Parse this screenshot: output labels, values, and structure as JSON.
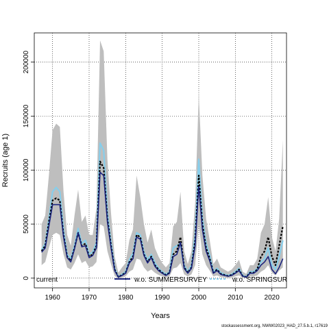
{
  "chart_data": {
    "type": "line",
    "title": "",
    "xlabel": "Years",
    "ylabel": "Recruits (age 1)",
    "xlim": [
      1955,
      2024
    ],
    "ylim": [
      -9000,
      227000
    ],
    "x_ticks": [
      1960,
      1970,
      1980,
      1990,
      2000,
      2010,
      2020
    ],
    "y_ticks": [
      0,
      50000,
      100000,
      150000,
      200000
    ],
    "y_tick_labels": [
      "0",
      "50000",
      "100000",
      "150000",
      "200000"
    ],
    "grid": true,
    "legend_placement": "bottom",
    "legend": [
      "current",
      "w.o. SUMMERSURVEY",
      "w.o. SPRINGSUR"
    ],
    "colors": {
      "band": "#bebebe",
      "current": "#000000",
      "summer": "#1a237e",
      "spring": "#87ceeb"
    },
    "x": [
      1957,
      1958,
      1959,
      1960,
      1961,
      1962,
      1963,
      1964,
      1965,
      1966,
      1967,
      1968,
      1969,
      1970,
      1971,
      1972,
      1973,
      1974,
      1975,
      1976,
      1977,
      1978,
      1979,
      1980,
      1981,
      1982,
      1983,
      1984,
      1985,
      1986,
      1987,
      1988,
      1989,
      1990,
      1991,
      1992,
      1993,
      1994,
      1995,
      1996,
      1997,
      1998,
      1999,
      2000,
      2001,
      2002,
      2003,
      2004,
      2005,
      2006,
      2007,
      2008,
      2009,
      2010,
      2011,
      2012,
      2013,
      2014,
      2015,
      2016,
      2017,
      2018,
      2019,
      2020,
      2021,
      2022,
      2023
    ],
    "series": [
      {
        "name": "current",
        "values": [
          25000,
          30000,
          52000,
          72000,
          74000,
          72000,
          40000,
          20000,
          16000,
          28000,
          42000,
          30000,
          32000,
          20000,
          22000,
          30000,
          108000,
          102000,
          55000,
          30000,
          8000,
          1000,
          3000,
          5000,
          15000,
          20000,
          40000,
          38000,
          22000,
          15000,
          20000,
          12000,
          8000,
          5000,
          3000,
          5000,
          22000,
          25000,
          38000,
          10000,
          5000,
          10000,
          35000,
          95000,
          50000,
          28000,
          18000,
          5000,
          8000,
          4000,
          3000,
          2000,
          3000,
          5000,
          8000,
          2000,
          1000,
          5000,
          5000,
          8000,
          20000,
          25000,
          38000,
          20000,
          12000,
          30000,
          48000
        ]
      },
      {
        "name": "w.o. SUMMERSURVEY",
        "values": [
          24000,
          28000,
          48000,
          68000,
          68000,
          68000,
          38000,
          19000,
          15000,
          27000,
          42000,
          29000,
          30000,
          19000,
          21000,
          28000,
          98000,
          95000,
          52000,
          28000,
          7000,
          900,
          2500,
          4500,
          14000,
          18000,
          38000,
          36000,
          21000,
          14000,
          19000,
          11000,
          7000,
          4500,
          2500,
          4500,
          20000,
          22000,
          33000,
          9000,
          4500,
          9000,
          30000,
          85000,
          45000,
          25000,
          16000,
          4500,
          7000,
          3500,
          2500,
          1800,
          2500,
          4500,
          7000,
          1800,
          900,
          4500,
          4500,
          7000,
          12000,
          15000,
          20000,
          8000,
          4000,
          10000,
          18000
        ]
      },
      {
        "name": "w.o. SPRINGSUR",
        "values": [
          26000,
          32000,
          55000,
          80000,
          84000,
          80000,
          44000,
          22000,
          18000,
          30000,
          46000,
          32000,
          35000,
          22000,
          24000,
          33000,
          125000,
          118000,
          60000,
          33000,
          9000,
          1200,
          3500,
          6000,
          17000,
          23000,
          42000,
          40000,
          24000,
          17000,
          22000,
          14000,
          9000,
          6000,
          3500,
          6000,
          28000,
          30000,
          32000,
          12000,
          6000,
          12000,
          40000,
          110000,
          55000,
          32000,
          21000,
          6000,
          9000,
          5000,
          3500,
          2500,
          3500,
          6000,
          9000,
          2500,
          1200,
          6000,
          6000,
          9000,
          15000,
          18000,
          28000,
          12000,
          8000,
          20000,
          35000
        ]
      }
    ],
    "band": {
      "upper": [
        50000,
        58000,
        95000,
        137000,
        143000,
        140000,
        80000,
        40000,
        30000,
        58000,
        82000,
        52000,
        58000,
        40000,
        40000,
        65000,
        220000,
        210000,
        110000,
        60000,
        20000,
        5000,
        10000,
        14000,
        35000,
        45000,
        95000,
        75000,
        50000,
        33000,
        45000,
        28000,
        20000,
        14000,
        10000,
        14000,
        48000,
        52000,
        80000,
        25000,
        13000,
        25000,
        70000,
        170000,
        95000,
        55000,
        35000,
        13000,
        18000,
        10000,
        8000,
        6000,
        8000,
        12000,
        17000,
        6000,
        4000,
        12000,
        12000,
        18000,
        42000,
        50000,
        75000,
        38000,
        25000,
        55000,
        128000
      ],
      "lower": [
        12000,
        15000,
        28000,
        40000,
        42000,
        40000,
        22000,
        10000,
        8000,
        14000,
        22000,
        14000,
        16000,
        10000,
        11000,
        15000,
        50000,
        48000,
        25000,
        13000,
        2000,
        0,
        500,
        1500,
        6000,
        8000,
        18000,
        17000,
        10000,
        6000,
        8000,
        5000,
        3000,
        1500,
        700,
        1500,
        9000,
        10000,
        14000,
        3500,
        1500,
        3500,
        12000,
        50000,
        22000,
        12000,
        7000,
        1500,
        2500,
        1000,
        700,
        400,
        700,
        1500,
        2500,
        400,
        200,
        1500,
        1500,
        2500,
        6000,
        8000,
        12000,
        5000,
        2500,
        7000,
        10000
      ]
    }
  },
  "footer": {
    "source_text": "stockassessment.org, NWW02023_HAD_27.5.b.1, r17619"
  }
}
